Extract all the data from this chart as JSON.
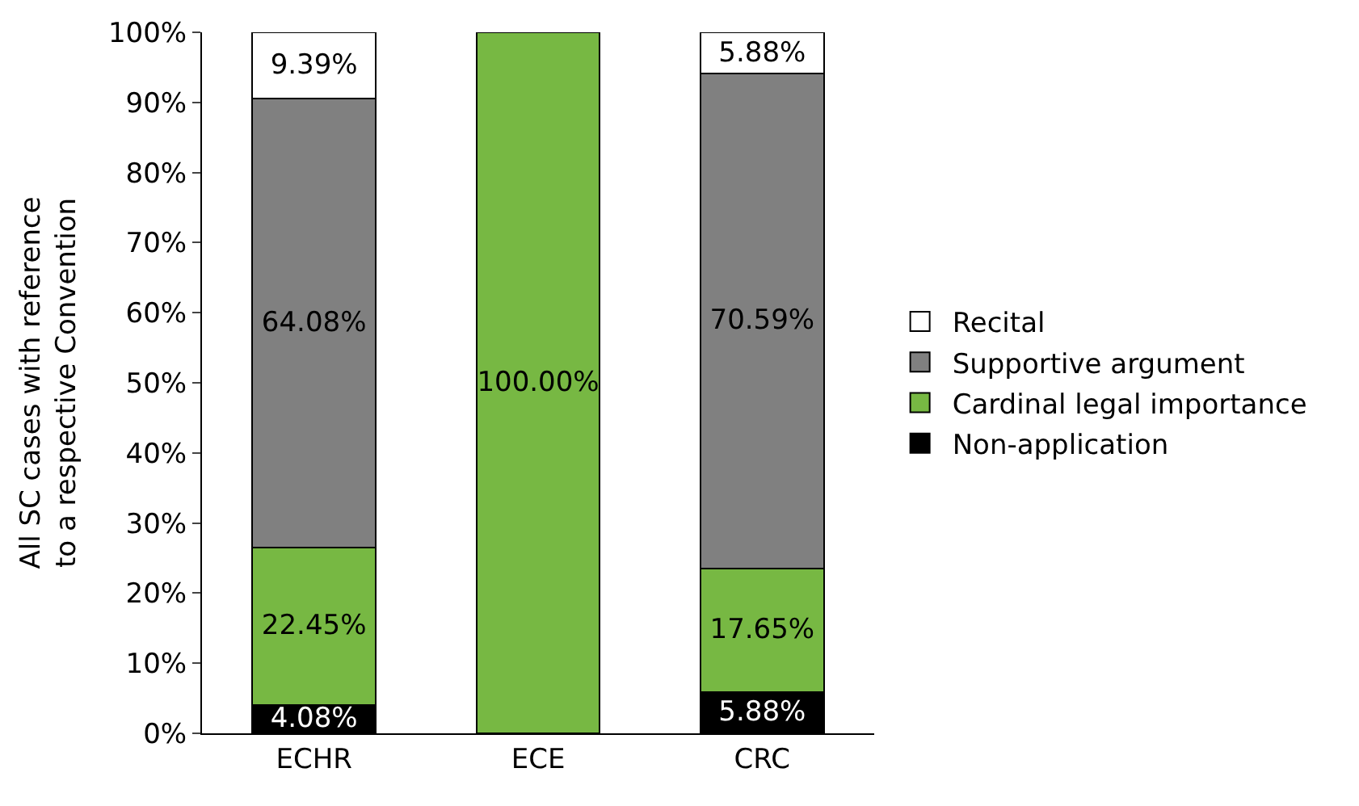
{
  "chart_data": {
    "type": "bar",
    "stacked": true,
    "ylabel": "All SC cases with reference to a respective Convention",
    "categories": [
      "ECHR",
      "ECE",
      "CRC"
    ],
    "series": [
      {
        "name": "Non-application",
        "color": "#000000",
        "values": [
          4.08,
          0,
          5.88
        ],
        "value_labels": [
          "4.08%",
          null,
          "5.88%"
        ]
      },
      {
        "name": "Cardinal legal importance",
        "color": "#77b843",
        "values": [
          22.45,
          100,
          17.65
        ],
        "value_labels": [
          "22.45%",
          "100.00%",
          "17.65%"
        ]
      },
      {
        "name": "Supportive argument",
        "color": "#808080",
        "values": [
          64.08,
          0,
          70.59
        ],
        "value_labels": [
          "64.08%",
          null,
          "70.59%"
        ]
      },
      {
        "name": "Recital",
        "color": "#ffffff",
        "values": [
          9.39,
          0,
          5.88
        ],
        "value_labels": [
          "9.39%",
          null,
          "5.88%"
        ]
      }
    ],
    "ylim": [
      0,
      100
    ],
    "yticks": [
      {
        "value": 0,
        "label": "0%"
      },
      {
        "value": 10,
        "label": "10%"
      },
      {
        "value": 20,
        "label": "20%"
      },
      {
        "value": 30,
        "label": "30%"
      },
      {
        "value": 40,
        "label": "40%"
      },
      {
        "value": 50,
        "label": "50%"
      },
      {
        "value": 60,
        "label": "60%"
      },
      {
        "value": 70,
        "label": "70%"
      },
      {
        "value": 80,
        "label": "80%"
      },
      {
        "value": 90,
        "label": "90%"
      },
      {
        "value": 100,
        "label": "100%"
      }
    ],
    "grid": false,
    "legend": "right"
  }
}
